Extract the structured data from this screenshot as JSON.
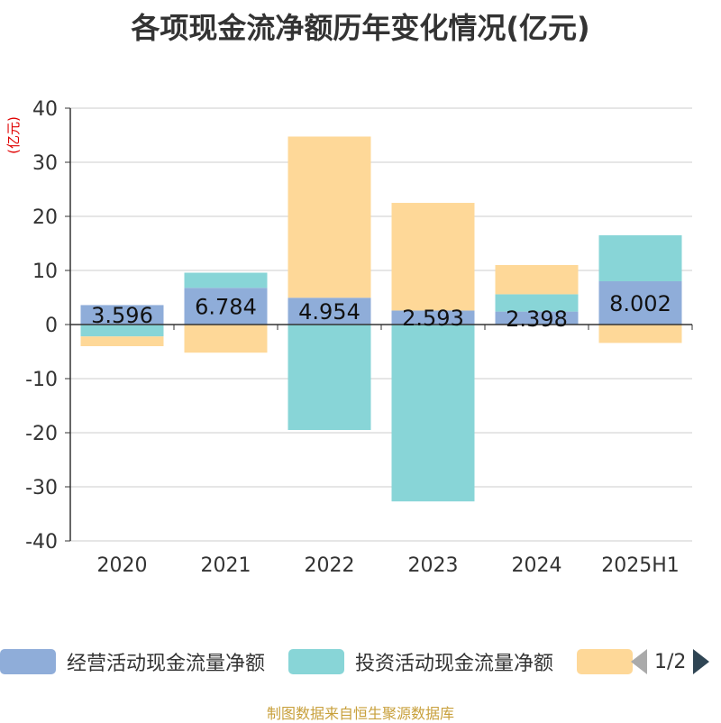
{
  "title": "各项现金流净额历年变化情况(亿元)",
  "unit_label": "(亿元)",
  "source": "制图数据来自恒生聚源数据库",
  "pager": {
    "text": "1/2"
  },
  "colors": {
    "operating": "#8fadd9",
    "investing": "#88d5d7",
    "financing": "#fed898",
    "axis": "#333333",
    "grid": "#cccccc"
  },
  "chart_data": {
    "type": "bar",
    "stacked": true,
    "categories": [
      "2020",
      "2021",
      "2022",
      "2023",
      "2024",
      "2025H1"
    ],
    "ylim": [
      -40,
      40
    ],
    "yticks": [
      40,
      30,
      20,
      10,
      0,
      -10,
      -20,
      -30,
      -40
    ],
    "grid": true,
    "legend_position": "bottom",
    "series": [
      {
        "name": "经营活动现金流量净额",
        "key": "operating",
        "values": [
          3.596,
          6.784,
          4.954,
          2.593,
          2.398,
          8.002
        ]
      },
      {
        "name": "投资活动现金流量净额",
        "key": "investing",
        "values": [
          -2.2,
          2.8,
          -19.5,
          -32.7,
          3.2,
          8.5
        ]
      },
      {
        "name": "",
        "key": "financing",
        "values": [
          -1.8,
          -5.2,
          29.8,
          19.9,
          5.4,
          -3.4
        ]
      }
    ],
    "data_labels": [
      "3.596",
      "6.784",
      "4.954",
      "2.593",
      "2.398",
      "8.002"
    ]
  }
}
